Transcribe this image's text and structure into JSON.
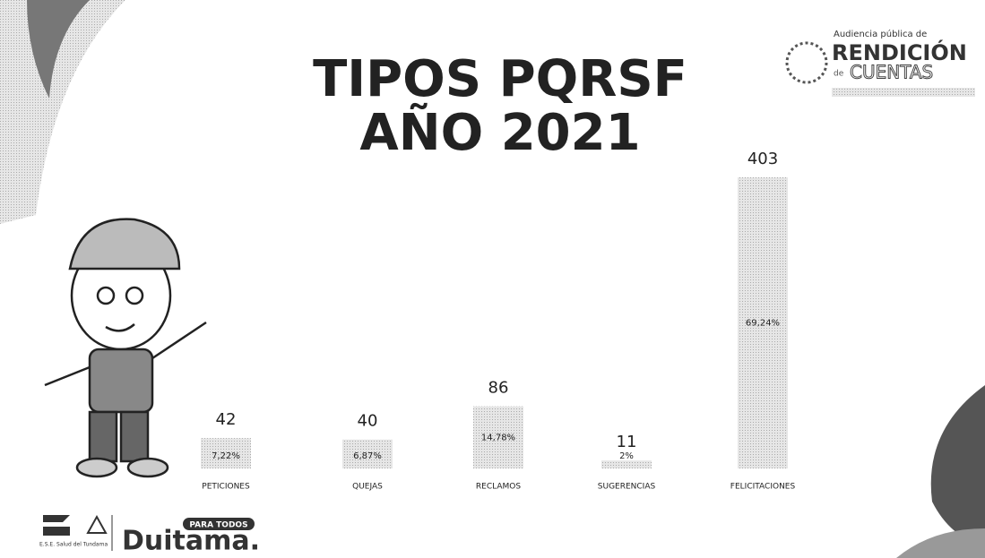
{
  "chart_data": {
    "type": "bar",
    "title_lines": [
      "TIPOS PQRSF",
      "AÑO 2021"
    ],
    "categories": [
      "PETICIONES",
      "QUEJAS",
      "RECLAMOS",
      "SUGERENCIAS",
      "FELICITACIONES"
    ],
    "values": [
      42,
      40,
      86,
      11,
      403
    ],
    "color": "#d4d4d4",
    "percentages": {
      "values": [
        7.22,
        6.87,
        14.78,
        2,
        69.24
      ],
      "value_labels": [
        "7,22%",
        "6,87%",
        "14,78%",
        "2%",
        "69,24%"
      ]
    }
  },
  "logo": {
    "top": "Audiencia pública de",
    "main": "RENDICIÓN",
    "sub_prefix": "de",
    "sub": "CUENTAS"
  },
  "footer": {
    "badge": "PARA TODOS",
    "city": "Duitama.",
    "small": "E.S.E. Salud del Tundama"
  }
}
